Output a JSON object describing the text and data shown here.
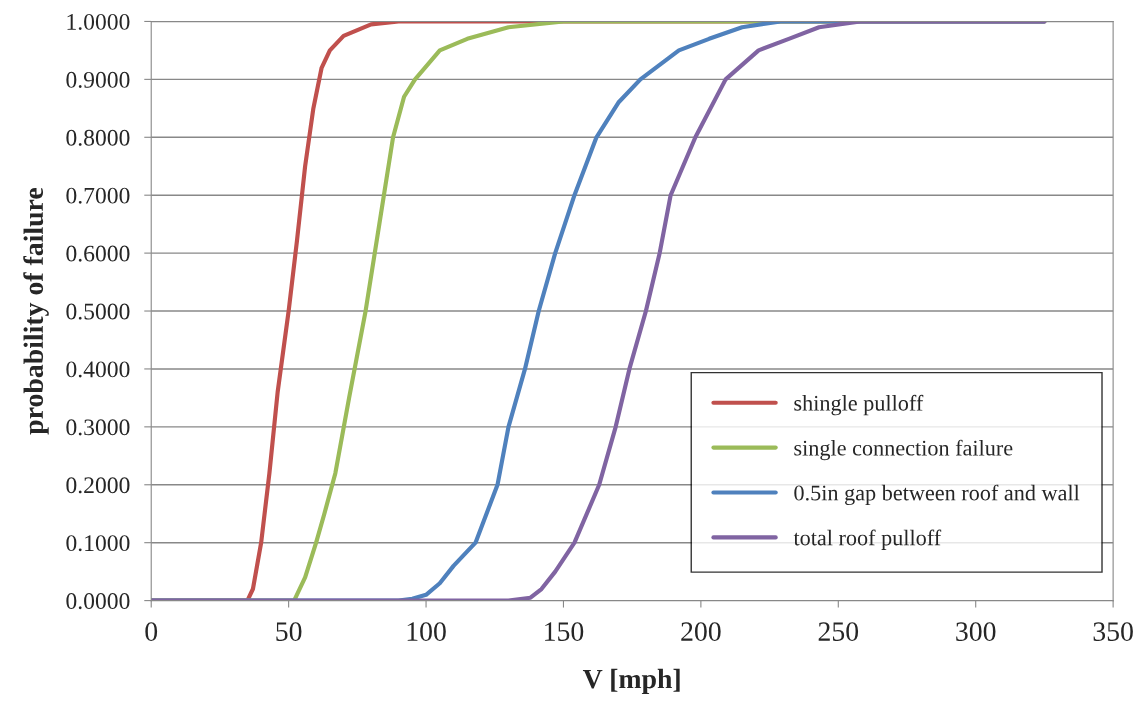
{
  "chart_data": {
    "type": "line",
    "xlabel": "V [mph]",
    "ylabel": "probability of failure",
    "xlim": [
      0,
      350
    ],
    "xticks": [
      0,
      50,
      100,
      150,
      200,
      250,
      300,
      350
    ],
    "ylim": [
      0,
      1
    ],
    "yticks": [
      {
        "value": 0,
        "label": "0.0000"
      },
      {
        "value": 0.1,
        "label": "0.1000"
      },
      {
        "value": 0.2,
        "label": "0.2000"
      },
      {
        "value": 0.3,
        "label": "0.3000"
      },
      {
        "value": 0.4,
        "label": "0.4000"
      },
      {
        "value": 0.5,
        "label": "0.5000"
      },
      {
        "value": 0.6,
        "label": "0.6000"
      },
      {
        "value": 0.7,
        "label": "0.7000"
      },
      {
        "value": 0.8,
        "label": "0.8000"
      },
      {
        "value": 0.9,
        "label": "0.9000"
      },
      {
        "value": 1,
        "label": "1.0000"
      }
    ],
    "grid": "y",
    "legend": "bottom right",
    "marker": "none",
    "line_style": "solid",
    "series": [
      {
        "name": "shingle pulloff",
        "color": "#c0504d",
        "x": [
          0,
          35,
          37,
          40,
          43,
          46,
          50,
          53,
          56,
          59,
          62,
          65,
          70,
          80,
          90,
          325
        ],
        "values": [
          0,
          0,
          0.02,
          0.1,
          0.22,
          0.36,
          0.5,
          0.62,
          0.75,
          0.85,
          0.92,
          0.95,
          0.975,
          0.995,
          1.0,
          1.0
        ]
      },
      {
        "name": "single connection failure",
        "color": "#9bbb59",
        "x": [
          0,
          52,
          56,
          60,
          63,
          67,
          72,
          78,
          83,
          88,
          92,
          96,
          105,
          115,
          130,
          150,
          325
        ],
        "values": [
          0,
          0,
          0.04,
          0.1,
          0.15,
          0.22,
          0.35,
          0.5,
          0.65,
          0.8,
          0.87,
          0.9,
          0.95,
          0.97,
          0.99,
          1.0,
          1.0
        ]
      },
      {
        "name": "0.5in gap between roof and wall",
        "color": "#4f81bd",
        "x": [
          0,
          90,
          95,
          100,
          105,
          110,
          118,
          126,
          130,
          136,
          141,
          147,
          154,
          162,
          170,
          178,
          192,
          203,
          215,
          229,
          325
        ],
        "values": [
          0,
          0,
          0.003,
          0.01,
          0.03,
          0.06,
          0.1,
          0.2,
          0.3,
          0.4,
          0.5,
          0.6,
          0.7,
          0.8,
          0.86,
          0.9,
          0.95,
          0.97,
          0.99,
          1.0,
          1.0
        ]
      },
      {
        "name": "total roof pulloff",
        "color": "#8064a2",
        "x": [
          0,
          130,
          138,
          142,
          147,
          154,
          163,
          169,
          174,
          180,
          185,
          189,
          198,
          209,
          221,
          232,
          243,
          258,
          325
        ],
        "values": [
          0,
          0,
          0.005,
          0.02,
          0.05,
          0.1,
          0.2,
          0.3,
          0.4,
          0.5,
          0.6,
          0.7,
          0.8,
          0.9,
          0.95,
          0.97,
          0.99,
          1.0,
          1.0
        ]
      }
    ]
  }
}
